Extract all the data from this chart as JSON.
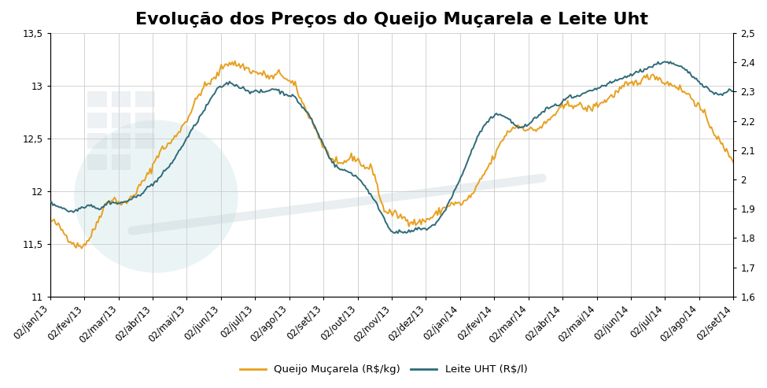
{
  "title": "Evolução dos Preços do Queijo Muçarela e Leite Uht",
  "x_labels": [
    "02/jan/13",
    "02/fev/13",
    "02/mar/13",
    "02/abr/13",
    "02/mai/13",
    "02/jun/13",
    "02/jul/13",
    "02/ago/13",
    "02/set/13",
    "02/out/13",
    "02/nov/13",
    "02/dez/13",
    "02/jan/14",
    "02/fev/14",
    "02/mar/14",
    "02/abr/14",
    "02/mai/14",
    "02/jun/14",
    "02/jul/14",
    "02/ago/14",
    "02/set/14"
  ],
  "n_months": 21,
  "queijo_color": "#E8A020",
  "uht_color": "#2E6B78",
  "legend_queijo": "Queijo Muçarela (R$/kg)",
  "legend_uht": "Leite UHT (R$/l)",
  "ylim_left": [
    11.0,
    13.5
  ],
  "ylim_right": [
    1.6,
    2.5
  ],
  "yticks_left": [
    11.0,
    11.5,
    12.0,
    12.5,
    13.0,
    13.5
  ],
  "yticks_right": [
    1.6,
    1.7,
    1.8,
    1.9,
    2.0,
    2.1,
    2.2,
    2.3,
    2.4,
    2.5
  ],
  "background_color": "#ffffff",
  "grid_color": "#cccccc",
  "title_fontsize": 16,
  "tick_fontsize": 8.5,
  "legend_fontsize": 9.5,
  "queijo_keypoints": [
    [
      0,
      11.72
    ],
    [
      2,
      11.6
    ],
    [
      4,
      11.48
    ],
    [
      6,
      11.62
    ],
    [
      7,
      11.78
    ],
    [
      8,
      11.9
    ],
    [
      9,
      11.92
    ],
    [
      10,
      11.88
    ],
    [
      11,
      11.92
    ],
    [
      12,
      12.0
    ],
    [
      13,
      12.1
    ],
    [
      14,
      12.2
    ],
    [
      15,
      12.35
    ],
    [
      16,
      12.42
    ],
    [
      17,
      12.48
    ],
    [
      18,
      12.58
    ],
    [
      19,
      12.68
    ],
    [
      20,
      12.82
    ],
    [
      21,
      12.95
    ],
    [
      22,
      13.02
    ],
    [
      23,
      13.08
    ],
    [
      24,
      13.18
    ],
    [
      25,
      13.22
    ],
    [
      26,
      13.2
    ],
    [
      27,
      13.18
    ],
    [
      28,
      13.14
    ],
    [
      29,
      13.12
    ],
    [
      30,
      13.1
    ],
    [
      31,
      13.08
    ],
    [
      32,
      13.12
    ],
    [
      33,
      13.05
    ],
    [
      34,
      13.0
    ],
    [
      35,
      12.85
    ],
    [
      36,
      12.72
    ],
    [
      37,
      12.58
    ],
    [
      38,
      12.42
    ],
    [
      39,
      12.32
    ],
    [
      40,
      12.25
    ],
    [
      41,
      12.28
    ],
    [
      42,
      12.32
    ],
    [
      43,
      12.28
    ],
    [
      44,
      12.22
    ],
    [
      45,
      12.18
    ],
    [
      46,
      11.9
    ],
    [
      47,
      11.8
    ],
    [
      48,
      11.78
    ],
    [
      49,
      11.75
    ],
    [
      50,
      11.72
    ],
    [
      51,
      11.7
    ],
    [
      52,
      11.72
    ],
    [
      53,
      11.75
    ],
    [
      54,
      11.8
    ],
    [
      55,
      11.85
    ],
    [
      56,
      11.88
    ],
    [
      57,
      11.88
    ],
    [
      58,
      11.92
    ],
    [
      59,
      12.0
    ],
    [
      60,
      12.12
    ],
    [
      61,
      12.24
    ],
    [
      62,
      12.36
    ],
    [
      63,
      12.5
    ],
    [
      64,
      12.58
    ],
    [
      65,
      12.62
    ],
    [
      66,
      12.6
    ],
    [
      67,
      12.58
    ],
    [
      68,
      12.6
    ],
    [
      69,
      12.65
    ],
    [
      70,
      12.72
    ],
    [
      71,
      12.78
    ],
    [
      72,
      12.82
    ],
    [
      73,
      12.82
    ],
    [
      74,
      12.8
    ],
    [
      75,
      12.78
    ],
    [
      76,
      12.82
    ],
    [
      77,
      12.85
    ],
    [
      78,
      12.9
    ],
    [
      79,
      12.95
    ],
    [
      80,
      13.0
    ],
    [
      81,
      13.02
    ],
    [
      82,
      13.05
    ],
    [
      83,
      13.08
    ],
    [
      84,
      13.1
    ],
    [
      85,
      13.05
    ],
    [
      86,
      13.02
    ],
    [
      87,
      13.0
    ],
    [
      88,
      12.95
    ],
    [
      89,
      12.9
    ],
    [
      90,
      12.82
    ],
    [
      91,
      12.72
    ],
    [
      92,
      12.6
    ],
    [
      93,
      12.48
    ],
    [
      94,
      12.38
    ],
    [
      95,
      12.3
    ]
  ],
  "uht_keypoints": [
    [
      0,
      1.92
    ],
    [
      1,
      1.91
    ],
    [
      2,
      1.9
    ],
    [
      3,
      1.89
    ],
    [
      4,
      1.9
    ],
    [
      5,
      1.91
    ],
    [
      6,
      1.91
    ],
    [
      7,
      1.9
    ],
    [
      8,
      1.92
    ],
    [
      9,
      1.92
    ],
    [
      10,
      1.92
    ],
    [
      11,
      1.93
    ],
    [
      12,
      1.94
    ],
    [
      13,
      1.96
    ],
    [
      14,
      1.98
    ],
    [
      15,
      2.0
    ],
    [
      16,
      2.03
    ],
    [
      17,
      2.06
    ],
    [
      18,
      2.1
    ],
    [
      19,
      2.14
    ],
    [
      20,
      2.18
    ],
    [
      21,
      2.22
    ],
    [
      22,
      2.26
    ],
    [
      23,
      2.3
    ],
    [
      24,
      2.32
    ],
    [
      25,
      2.33
    ],
    [
      26,
      2.32
    ],
    [
      27,
      2.31
    ],
    [
      28,
      2.3
    ],
    [
      29,
      2.3
    ],
    [
      30,
      2.3
    ],
    [
      31,
      2.31
    ],
    [
      32,
      2.3
    ],
    [
      33,
      2.29
    ],
    [
      34,
      2.28
    ],
    [
      35,
      2.25
    ],
    [
      36,
      2.22
    ],
    [
      37,
      2.17
    ],
    [
      38,
      2.12
    ],
    [
      39,
      2.07
    ],
    [
      40,
      2.04
    ],
    [
      41,
      2.03
    ],
    [
      42,
      2.02
    ],
    [
      43,
      2.0
    ],
    [
      44,
      1.97
    ],
    [
      45,
      1.93
    ],
    [
      46,
      1.89
    ],
    [
      47,
      1.84
    ],
    [
      48,
      1.82
    ],
    [
      49,
      1.82
    ],
    [
      50,
      1.82
    ],
    [
      51,
      1.83
    ],
    [
      52,
      1.83
    ],
    [
      53,
      1.84
    ],
    [
      54,
      1.86
    ],
    [
      55,
      1.9
    ],
    [
      56,
      1.95
    ],
    [
      57,
      2.0
    ],
    [
      58,
      2.06
    ],
    [
      59,
      2.12
    ],
    [
      60,
      2.17
    ],
    [
      61,
      2.2
    ],
    [
      62,
      2.22
    ],
    [
      63,
      2.22
    ],
    [
      64,
      2.2
    ],
    [
      65,
      2.18
    ],
    [
      66,
      2.18
    ],
    [
      67,
      2.2
    ],
    [
      68,
      2.22
    ],
    [
      69,
      2.24
    ],
    [
      70,
      2.25
    ],
    [
      71,
      2.26
    ],
    [
      72,
      2.28
    ],
    [
      73,
      2.28
    ],
    [
      74,
      2.29
    ],
    [
      75,
      2.3
    ],
    [
      76,
      2.31
    ],
    [
      77,
      2.32
    ],
    [
      78,
      2.33
    ],
    [
      79,
      2.34
    ],
    [
      80,
      2.35
    ],
    [
      81,
      2.36
    ],
    [
      82,
      2.37
    ],
    [
      83,
      2.38
    ],
    [
      84,
      2.39
    ],
    [
      85,
      2.4
    ],
    [
      86,
      2.4
    ],
    [
      87,
      2.39
    ],
    [
      88,
      2.38
    ],
    [
      89,
      2.36
    ],
    [
      90,
      2.34
    ],
    [
      91,
      2.32
    ],
    [
      92,
      2.3
    ],
    [
      93,
      2.29
    ],
    [
      94,
      2.3
    ],
    [
      95,
      2.3
    ]
  ]
}
